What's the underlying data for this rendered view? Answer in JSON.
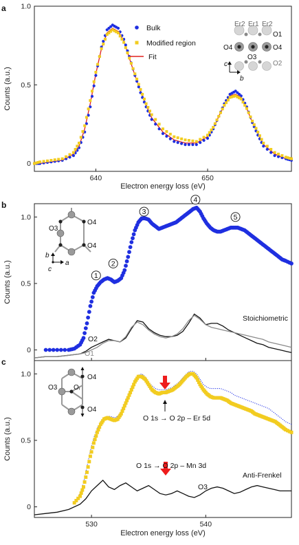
{
  "colors": {
    "bulk": "#1f2fe0",
    "modified": "#f2cc20",
    "fit": "#e0201f",
    "black": "#111111",
    "gray": "#8a8a8a",
    "arrow_red": "#ee1c1c",
    "dotted_blue": "#2b3be8"
  },
  "panels": {
    "a": {
      "letter": "a",
      "ylabel": "Counts (a.u.)",
      "xlabel": "Electron energy loss (eV)",
      "y_tick_labels": [
        "0",
        "0.5",
        "1.0"
      ],
      "x_tick_labels": [
        "640",
        "650"
      ],
      "legend": {
        "bulk": "Bulk",
        "modified": "Modified region",
        "fit": "Fit"
      },
      "structure_labels": {
        "er2_left": "Er2",
        "er1": "Er1",
        "er2_right": "Er2",
        "o1": "O1",
        "o4_left": "O4",
        "o3": "O3",
        "o4_right": "O4",
        "o2": "O2",
        "axis_c": "c",
        "axis_b": "b"
      }
    },
    "b": {
      "letter": "b",
      "ylabel": "Counts (a.u.)",
      "y_tick_labels": [
        "0",
        "0.5",
        "1.0"
      ],
      "peak_markers": [
        "1",
        "2",
        "3",
        "4",
        "5"
      ],
      "labels": {
        "o2": "O2",
        "o1": "O1",
        "stoich": "Stoichiometric"
      },
      "structure_labels": {
        "o3": "O3",
        "o4_top": "O4",
        "o4_bottom": "O4",
        "axis_b": "b",
        "axis_a": "a",
        "axis_c": "c"
      }
    },
    "c": {
      "letter": "c",
      "ylabel": "Counts (a.u.)",
      "xlabel": "Electron energy loss (eV)",
      "y_tick_labels": [
        "0",
        "0.5",
        "1.0"
      ],
      "x_tick_labels": [
        "530",
        "540"
      ],
      "labels": {
        "er_transition": "O 1s → O 2p – Er 5d",
        "mn_transition": "O 1s → O 2p – Mn 3d",
        "anti_frenkel": "Anti-Frenkel",
        "o3": "O3"
      },
      "structure_labels": {
        "o4_top": "O4",
        "o3": "O3",
        "oi": "Oᵢ",
        "o4_bottom": "O4"
      }
    }
  },
  "chart_data": [
    {
      "type": "line",
      "panel": "a",
      "xlabel": "Electron energy loss (eV)",
      "ylabel": "Counts (a.u.)",
      "xlim": [
        634.5,
        657.5
      ],
      "ylim": [
        -0.05,
        1.0
      ],
      "x_ticks": [
        640,
        650
      ],
      "y_ticks": [
        0,
        0.5,
        1.0
      ],
      "grid": false,
      "legend_position": "top-center",
      "series": [
        {
          "name": "Bulk",
          "style": "dots",
          "x": [
            634.5,
            635,
            636,
            637,
            638,
            638.5,
            639,
            639.5,
            640,
            640.5,
            641,
            641.5,
            642,
            642.5,
            643,
            643.5,
            644,
            644.5,
            645,
            646,
            647,
            648,
            649,
            650,
            650.5,
            651,
            651.5,
            652,
            652.5,
            653,
            653.5,
            654,
            654.5,
            655,
            656,
            657,
            657.5
          ],
          "y": [
            0.0,
            0.0,
            0.01,
            0.02,
            0.05,
            0.1,
            0.2,
            0.36,
            0.56,
            0.74,
            0.85,
            0.88,
            0.86,
            0.79,
            0.68,
            0.56,
            0.45,
            0.36,
            0.28,
            0.19,
            0.14,
            0.12,
            0.12,
            0.16,
            0.22,
            0.3,
            0.38,
            0.44,
            0.46,
            0.43,
            0.36,
            0.26,
            0.18,
            0.11,
            0.05,
            0.03,
            0.02
          ]
        },
        {
          "name": "Modified region",
          "style": "squares",
          "x": [
            634.5,
            635,
            636,
            637,
            638,
            638.5,
            639,
            639.5,
            640,
            640.5,
            641,
            641.5,
            642,
            642.5,
            643,
            643.5,
            644,
            644.5,
            645,
            646,
            647,
            648,
            649,
            650,
            650.5,
            651,
            651.5,
            652,
            652.5,
            653,
            653.5,
            654,
            654.5,
            655,
            656,
            657,
            657.5
          ],
          "y": [
            0.0,
            0.01,
            0.02,
            0.03,
            0.07,
            0.13,
            0.24,
            0.4,
            0.58,
            0.73,
            0.82,
            0.85,
            0.83,
            0.77,
            0.67,
            0.57,
            0.47,
            0.38,
            0.31,
            0.22,
            0.17,
            0.15,
            0.14,
            0.18,
            0.23,
            0.3,
            0.37,
            0.42,
            0.43,
            0.41,
            0.35,
            0.27,
            0.2,
            0.13,
            0.07,
            0.04,
            0.03
          ]
        },
        {
          "name": "Fit",
          "style": "line",
          "x": [
            634.5,
            635,
            636,
            637,
            638,
            638.5,
            639,
            639.5,
            640,
            640.5,
            641,
            641.5,
            642,
            642.5,
            643,
            643.5,
            644,
            644.5,
            645,
            646,
            647,
            648,
            649,
            650,
            650.5,
            651,
            651.5,
            652,
            652.5,
            653,
            653.5,
            654,
            654.5,
            655,
            656,
            657,
            657.5
          ],
          "y": [
            0.0,
            0.0,
            0.01,
            0.02,
            0.06,
            0.11,
            0.22,
            0.38,
            0.57,
            0.73,
            0.83,
            0.86,
            0.84,
            0.78,
            0.67,
            0.56,
            0.46,
            0.37,
            0.29,
            0.2,
            0.15,
            0.13,
            0.13,
            0.17,
            0.22,
            0.3,
            0.37,
            0.43,
            0.44,
            0.42,
            0.35,
            0.26,
            0.19,
            0.12,
            0.06,
            0.03,
            0.02
          ]
        }
      ]
    },
    {
      "type": "line",
      "panel": "b",
      "ylabel": "Counts (a.u.)",
      "xlim": [
        525,
        547.5
      ],
      "ylim": [
        -0.08,
        1.1
      ],
      "y_ticks": [
        0,
        0.5,
        1.0
      ],
      "grid": false,
      "series": [
        {
          "style": "dots",
          "x": [
            526,
            527,
            528,
            528.5,
            529,
            529.3,
            529.6,
            529.9,
            530.2,
            530.5,
            530.8,
            531.1,
            531.4,
            531.7,
            532,
            532.3,
            532.6,
            532.9,
            533.2,
            533.5,
            533.8,
            534.1,
            534.4,
            534.7,
            535,
            535.3,
            535.6,
            535.9,
            536.2,
            536.5,
            536.8,
            537.1,
            537.4,
            537.7,
            538,
            538.3,
            538.6,
            538.9,
            539.2,
            539.5,
            539.8,
            540.1,
            540.4,
            540.7,
            541,
            541.3,
            541.6,
            541.9,
            542.2,
            542.5,
            542.8,
            543.1,
            543.4,
            543.7,
            544,
            544.3,
            544.6,
            544.9,
            545.2,
            545.5,
            545.8,
            546.1,
            546.4,
            546.7,
            547,
            547.5
          ],
          "y": [
            0.0,
            0.0,
            0.0,
            0.01,
            0.04,
            0.09,
            0.2,
            0.33,
            0.43,
            0.48,
            0.51,
            0.53,
            0.54,
            0.53,
            0.51,
            0.52,
            0.54,
            0.6,
            0.7,
            0.81,
            0.9,
            0.96,
            0.99,
            0.99,
            0.98,
            0.95,
            0.93,
            0.91,
            0.92,
            0.93,
            0.94,
            0.95,
            0.96,
            0.98,
            1.0,
            1.02,
            1.04,
            1.06,
            1.07,
            1.04,
            0.99,
            0.95,
            0.92,
            0.9,
            0.89,
            0.89,
            0.9,
            0.91,
            0.92,
            0.92,
            0.92,
            0.91,
            0.9,
            0.88,
            0.86,
            0.84,
            0.82,
            0.8,
            0.78,
            0.76,
            0.74,
            0.72,
            0.7,
            0.68,
            0.67,
            0.65
          ]
        },
        {
          "name": "Stoichiometric",
          "style": "line-black",
          "x": [
            525,
            526,
            527,
            528,
            529,
            529.5,
            530,
            530.5,
            531,
            531.5,
            532,
            532.5,
            533,
            533.5,
            534,
            534.5,
            535,
            535.5,
            536,
            536.5,
            537,
            537.5,
            538,
            538.5,
            539,
            539.5,
            540,
            540.5,
            541,
            541.5,
            542,
            542.5,
            543,
            543.5,
            544,
            544.5,
            545,
            545.5,
            546,
            546.5,
            547,
            547.5
          ],
          "y": [
            -0.06,
            -0.05,
            -0.05,
            -0.04,
            -0.03,
            -0.01,
            0.02,
            0.04,
            0.06,
            0.08,
            0.07,
            0.06,
            0.09,
            0.16,
            0.22,
            0.21,
            0.16,
            0.13,
            0.11,
            0.1,
            0.1,
            0.11,
            0.14,
            0.2,
            0.27,
            0.24,
            0.19,
            0.2,
            0.2,
            0.18,
            0.15,
            0.13,
            0.11,
            0.09,
            0.07,
            0.05,
            0.04,
            0.02,
            0.01,
            0.0,
            -0.01,
            -0.02
          ]
        },
        {
          "style": "line-gray",
          "x": [
            525,
            526,
            527,
            528,
            529,
            529.5,
            530,
            530.5,
            531,
            531.5,
            532,
            532.5,
            533,
            533.5,
            534,
            534.5,
            535,
            535.5,
            536,
            536.5,
            537,
            537.5,
            538,
            538.5,
            539,
            539.5,
            540,
            540.5,
            541,
            541.5,
            542,
            542.5,
            543,
            543.5,
            544,
            544.5,
            545,
            545.5,
            546,
            546.5,
            547,
            547.5
          ],
          "y": [
            -0.06,
            -0.05,
            -0.05,
            -0.04,
            -0.03,
            -0.02,
            0.0,
            0.02,
            0.05,
            0.07,
            0.07,
            0.06,
            0.1,
            0.17,
            0.21,
            0.19,
            0.15,
            0.12,
            0.1,
            0.09,
            0.1,
            0.12,
            0.16,
            0.22,
            0.26,
            0.23,
            0.19,
            0.17,
            0.16,
            0.15,
            0.14,
            0.13,
            0.12,
            0.11,
            0.1,
            0.09,
            0.08,
            0.06,
            0.05,
            0.04,
            0.03,
            0.02
          ]
        }
      ]
    },
    {
      "type": "line",
      "panel": "c",
      "xlabel": "Electron energy loss (eV)",
      "ylabel": "Counts (a.u.)",
      "xlim": [
        525,
        547.5
      ],
      "ylim": [
        -0.08,
        1.1
      ],
      "x_ticks": [
        530,
        540
      ],
      "y_ticks": [
        0,
        0.5,
        1.0
      ],
      "grid": false,
      "series": [
        {
          "style": "squares",
          "x": [
            528.5,
            529,
            529.3,
            529.6,
            529.9,
            530.2,
            530.5,
            530.8,
            531.1,
            531.4,
            531.7,
            532,
            532.3,
            532.6,
            532.9,
            533.2,
            533.5,
            533.8,
            534.1,
            534.4,
            534.7,
            535,
            535.3,
            535.6,
            535.9,
            536.2,
            536.5,
            536.8,
            537.1,
            537.4,
            537.7,
            538,
            538.3,
            538.6,
            538.9,
            539.2,
            539.5,
            539.8,
            540.1,
            540.4,
            540.7,
            541,
            541.3,
            541.6,
            541.9,
            542.2,
            542.5,
            542.8,
            543.1,
            543.4,
            543.7,
            544,
            544.3,
            544.6,
            544.9,
            545.2,
            545.5,
            545.8,
            546.1,
            546.4,
            546.7,
            547,
            547.5
          ],
          "y": [
            0.03,
            0.08,
            0.15,
            0.26,
            0.38,
            0.48,
            0.56,
            0.62,
            0.66,
            0.67,
            0.66,
            0.65,
            0.66,
            0.7,
            0.76,
            0.82,
            0.88,
            0.94,
            0.98,
            0.98,
            0.96,
            0.92,
            0.88,
            0.86,
            0.85,
            0.86,
            0.86,
            0.87,
            0.88,
            0.9,
            0.92,
            0.95,
            0.98,
            1.0,
            1.0,
            0.97,
            0.92,
            0.88,
            0.85,
            0.83,
            0.82,
            0.82,
            0.82,
            0.81,
            0.8,
            0.78,
            0.77,
            0.76,
            0.75,
            0.74,
            0.73,
            0.72,
            0.7,
            0.69,
            0.68,
            0.67,
            0.66,
            0.65,
            0.64,
            0.62,
            0.6,
            0.58,
            0.56
          ]
        },
        {
          "style": "dotted-blue",
          "x": [
            528.5,
            529,
            529.3,
            529.6,
            529.9,
            530.2,
            530.5,
            530.8,
            531.1,
            531.4,
            531.7,
            532,
            532.3,
            532.6,
            532.9,
            533.2,
            533.5,
            533.8,
            534.1,
            534.4,
            534.7,
            535,
            535.3,
            535.6,
            535.9,
            536.2,
            536.5,
            536.8,
            537.1,
            537.4,
            537.7,
            538,
            538.3,
            538.6,
            538.9,
            539.2,
            539.5,
            539.8,
            540.1,
            540.4,
            540.7,
            541,
            541.3,
            541.6,
            541.9,
            542.2,
            542.5,
            542.8,
            543.1,
            543.4,
            543.7,
            544,
            544.3,
            544.6,
            544.9,
            545.2,
            545.5,
            545.8,
            546.1,
            546.4,
            546.7,
            547,
            547.5
          ],
          "y": [
            0.03,
            0.1,
            0.18,
            0.3,
            0.42,
            0.52,
            0.59,
            0.64,
            0.67,
            0.68,
            0.68,
            0.67,
            0.68,
            0.72,
            0.78,
            0.84,
            0.9,
            0.95,
            0.99,
            1.0,
            0.98,
            0.94,
            0.91,
            0.89,
            0.88,
            0.88,
            0.88,
            0.89,
            0.9,
            0.92,
            0.94,
            0.97,
            1.0,
            1.02,
            1.02,
            1.0,
            0.96,
            0.92,
            0.9,
            0.89,
            0.89,
            0.89,
            0.89,
            0.88,
            0.87,
            0.86,
            0.84,
            0.83,
            0.82,
            0.81,
            0.8,
            0.79,
            0.78,
            0.77,
            0.76,
            0.75,
            0.74,
            0.72,
            0.7,
            0.68,
            0.66,
            0.64,
            0.62
          ]
        },
        {
          "name": "Anti-Frenkel",
          "style": "line-black",
          "x": [
            525,
            526,
            527,
            528,
            529,
            529.5,
            530,
            530.5,
            531,
            531.5,
            532,
            532.5,
            533,
            533.5,
            534,
            534.5,
            535,
            535.5,
            536,
            536.5,
            537,
            537.5,
            538,
            538.5,
            539,
            539.5,
            540,
            540.5,
            541,
            541.5,
            542,
            542.5,
            543,
            543.5,
            544,
            544.5,
            545,
            545.5,
            546,
            546.5,
            547,
            547.5
          ],
          "y": [
            -0.06,
            -0.05,
            -0.04,
            -0.02,
            0.02,
            0.06,
            0.12,
            0.16,
            0.2,
            0.15,
            0.13,
            0.16,
            0.18,
            0.15,
            0.12,
            0.14,
            0.16,
            0.13,
            0.1,
            0.09,
            0.1,
            0.12,
            0.1,
            0.08,
            0.07,
            0.09,
            0.12,
            0.14,
            0.15,
            0.14,
            0.12,
            0.1,
            0.11,
            0.13,
            0.15,
            0.16,
            0.15,
            0.14,
            0.13,
            0.12,
            0.12,
            0.12
          ]
        }
      ]
    }
  ]
}
